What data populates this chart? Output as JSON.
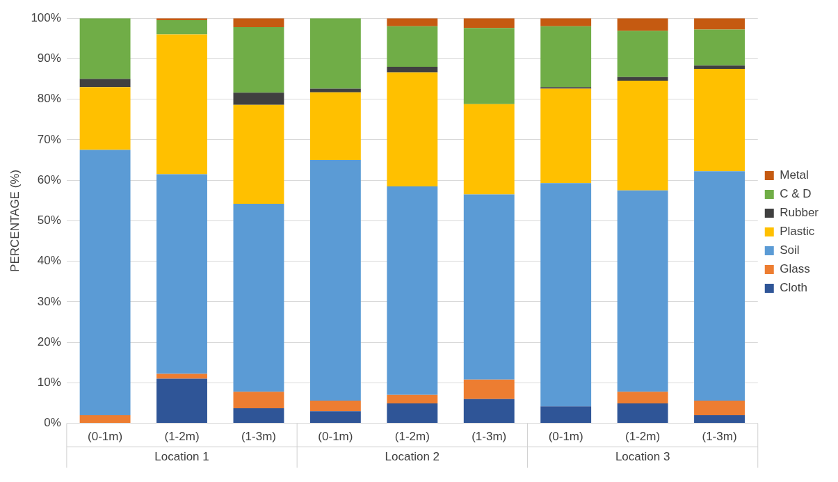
{
  "chart_data": {
    "type": "bar",
    "stacked": true,
    "ylabel": "PERCENTAGE (%)",
    "categories": [
      "(0-1m)",
      "(1-2m)",
      "(1-3m)",
      "(0-1m)",
      "(1-2m)",
      "(1-3m)",
      "(0-1m)",
      "(1-2m)",
      "(1-3m)"
    ],
    "annotations": [
      "Location 1",
      "Location 2",
      "Location 3"
    ],
    "series": [
      {
        "name": "Cloth",
        "color": "#2f5597",
        "values": [
          0,
          11,
          3.7,
          3,
          4.9,
          6,
          4.2,
          4.9,
          2
        ]
      },
      {
        "name": "Glass",
        "color": "#ed7d31",
        "values": [
          2,
          1.2,
          4.1,
          2.6,
          2.1,
          4.8,
          0,
          2.9,
          3.6
        ]
      },
      {
        "name": "Soil",
        "color": "#5b9bd5",
        "values": [
          65.5,
          49.3,
          46.4,
          59.4,
          51.5,
          45.7,
          55.1,
          49.7,
          56.6
        ]
      },
      {
        "name": "Plastic",
        "color": "#ffc000",
        "values": [
          15.5,
          34.5,
          24.4,
          16.7,
          28.1,
          22.3,
          23.3,
          27.1,
          25.3
        ]
      },
      {
        "name": "Rubber",
        "color": "#404040",
        "values": [
          2,
          0,
          3,
          0.9,
          1.4,
          0,
          0.4,
          0.9,
          0.8
        ]
      },
      {
        "name": "C & D",
        "color": "#70ad47",
        "values": [
          15,
          3.5,
          16.2,
          17.4,
          10,
          18.8,
          15,
          11.4,
          8.9
        ]
      },
      {
        "name": "Metal",
        "color": "#c55a11",
        "values": [
          0,
          0.5,
          2.2,
          0,
          2,
          2.4,
          2,
          3.1,
          2.8
        ]
      }
    ],
    "ylim": [
      0,
      100
    ],
    "yticks": [
      {
        "value": 0,
        "label": "0%"
      },
      {
        "value": 10,
        "label": "10%"
      },
      {
        "value": 20,
        "label": "20%"
      },
      {
        "value": 30,
        "label": "30%"
      },
      {
        "value": 40,
        "label": "40%"
      },
      {
        "value": 50,
        "label": "50%"
      },
      {
        "value": 60,
        "label": "60%"
      },
      {
        "value": 70,
        "label": "70%"
      },
      {
        "value": 80,
        "label": "80%"
      },
      {
        "value": 90,
        "label": "90%"
      },
      {
        "value": 100,
        "label": "100%"
      }
    ],
    "grid": "y",
    "legend": "right"
  }
}
